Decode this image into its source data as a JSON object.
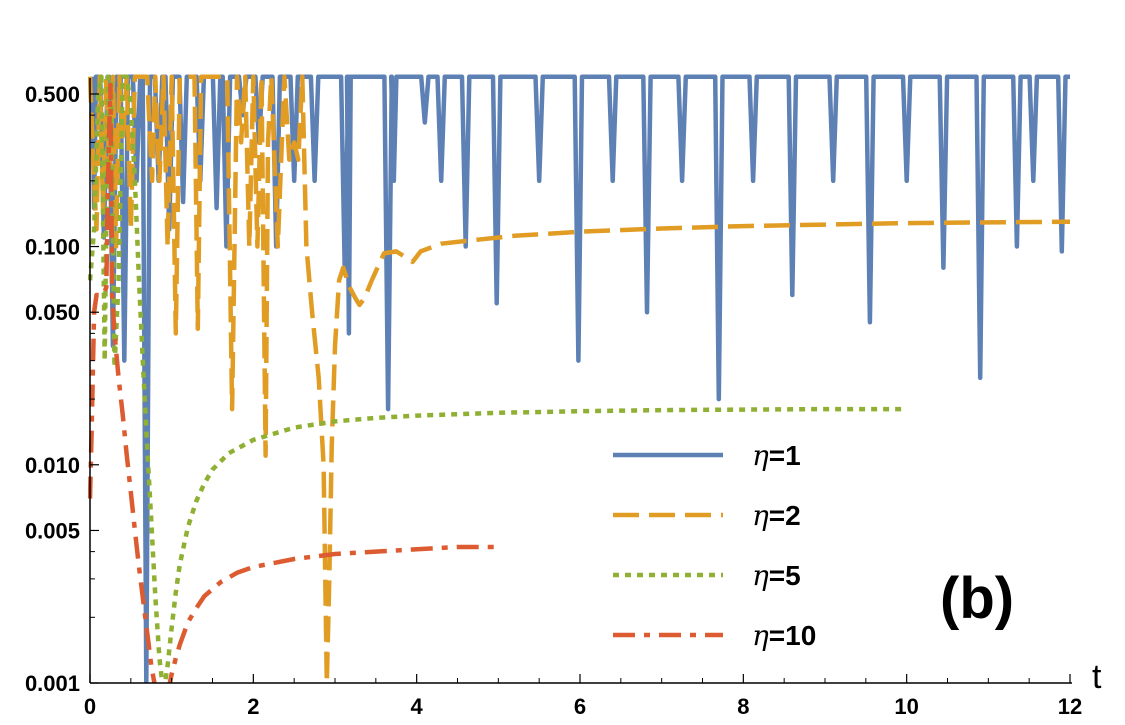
{
  "chart_data": {
    "type": "line",
    "title": "",
    "xlabel": "t",
    "ylabel": "",
    "xlim": [
      0,
      12
    ],
    "ylim": [
      0.001,
      0.6
    ],
    "yscale": "log",
    "grid": false,
    "legend_position": "lower-right",
    "panel_label": "(b)",
    "x_ticks": [
      {
        "value": 0,
        "label": "0"
      },
      {
        "value": 2,
        "label": "2"
      },
      {
        "value": 4,
        "label": "4"
      },
      {
        "value": 6,
        "label": "6"
      },
      {
        "value": 8,
        "label": "8"
      },
      {
        "value": 10,
        "label": "10"
      },
      {
        "value": 12,
        "label": "12"
      }
    ],
    "y_ticks": [
      {
        "value": 0.5,
        "label": "0.500"
      },
      {
        "value": 0.1,
        "label": "0.100"
      },
      {
        "value": 0.05,
        "label": "0.050"
      },
      {
        "value": 0.01,
        "label": "0.010"
      },
      {
        "value": 0.005,
        "label": "0.005"
      },
      {
        "value": 0.001,
        "label": "0.001"
      }
    ],
    "series": [
      {
        "name": "η=1",
        "color": "#5e81b5",
        "dash": "solid",
        "base": 0.6,
        "dips": [
          [
            0.05,
            0.15
          ],
          [
            0.17,
            0.11
          ],
          [
            0.28,
            0.035
          ],
          [
            0.42,
            0.03
          ],
          [
            0.57,
            0.2
          ],
          [
            0.69,
            0.001
          ],
          [
            0.84,
            0.2
          ],
          [
            0.97,
            0.12
          ],
          [
            1.14,
            0.16
          ],
          [
            1.35,
            0.2
          ],
          [
            1.55,
            0.15
          ],
          [
            1.67,
            0.1
          ],
          [
            1.87,
            0.4
          ],
          [
            2.07,
            0.3
          ],
          [
            2.28,
            0.1
          ],
          [
            2.5,
            0.2
          ],
          [
            2.75,
            0.2
          ],
          [
            3.12,
            0.075
          ],
          [
            3.17,
            0.04
          ],
          [
            3.65,
            0.018
          ],
          [
            3.72,
            0.2
          ],
          [
            4.1,
            0.37
          ],
          [
            4.3,
            0.2
          ],
          [
            4.6,
            0.1
          ],
          [
            4.98,
            0.055
          ],
          [
            5.5,
            0.2
          ],
          [
            5.98,
            0.03
          ],
          [
            6.4,
            0.2
          ],
          [
            6.82,
            0.05
          ],
          [
            7.25,
            0.2
          ],
          [
            7.7,
            0.02
          ],
          [
            8.12,
            0.2
          ],
          [
            8.6,
            0.06
          ],
          [
            9.1,
            0.2
          ],
          [
            9.55,
            0.045
          ],
          [
            10.0,
            0.2
          ],
          [
            10.45,
            0.08
          ],
          [
            10.9,
            0.025
          ],
          [
            11.35,
            0.1
          ],
          [
            11.55,
            0.2
          ],
          [
            11.9,
            0.095
          ]
        ]
      },
      {
        "name": "η=2",
        "color": "#e19c24",
        "dash": "dashed",
        "x": [
          0.0,
          0.05,
          0.08,
          0.12,
          0.16,
          0.2,
          0.24,
          0.28,
          0.32,
          0.36,
          0.4,
          0.45,
          0.5,
          0.55,
          0.62,
          0.7,
          0.76,
          0.8,
          0.85,
          0.9,
          0.95,
          1.0,
          1.05,
          1.1,
          1.15,
          1.22,
          1.28,
          1.32,
          1.36,
          1.42,
          1.5,
          1.6,
          1.68,
          1.74,
          1.8,
          1.85,
          1.9,
          1.95,
          2.0,
          2.05,
          2.1,
          2.15,
          2.18,
          2.22,
          2.3,
          2.38,
          2.44,
          2.5,
          2.55,
          2.6,
          2.65,
          2.72,
          2.8,
          2.86,
          2.9,
          2.93,
          2.96,
          3.0,
          3.05,
          3.1,
          3.18,
          3.25,
          3.3,
          3.36,
          3.45,
          3.6,
          3.75,
          3.85,
          3.95,
          4.05,
          4.3,
          4.7,
          5.2,
          6.0,
          7.0,
          8.0,
          9.0,
          10.0,
          11.0,
          12.0
        ],
        "y": [
          0.6,
          0.2,
          0.12,
          0.6,
          0.15,
          0.6,
          0.2,
          0.6,
          0.1,
          0.6,
          0.3,
          0.6,
          0.12,
          0.6,
          0.6,
          0.6,
          0.2,
          0.6,
          0.2,
          0.6,
          0.1,
          0.6,
          0.04,
          0.6,
          0.6,
          0.6,
          0.6,
          0.042,
          0.6,
          0.6,
          0.6,
          0.6,
          0.6,
          0.018,
          0.6,
          0.3,
          0.6,
          0.1,
          0.6,
          0.1,
          0.6,
          0.011,
          0.3,
          0.6,
          0.1,
          0.6,
          0.25,
          0.3,
          0.25,
          0.6,
          0.1,
          0.05,
          0.025,
          0.01,
          0.001,
          0.003,
          0.012,
          0.035,
          0.07,
          0.08,
          0.065,
          0.058,
          0.054,
          0.058,
          0.07,
          0.093,
          0.095,
          0.09,
          0.085,
          0.095,
          0.103,
          0.107,
          0.112,
          0.117,
          0.121,
          0.124,
          0.126,
          0.128,
          0.129,
          0.13
        ]
      },
      {
        "name": "η=5",
        "color": "#8fb032",
        "dash": "dotted",
        "x": [
          0.0,
          0.05,
          0.1,
          0.14,
          0.18,
          0.22,
          0.26,
          0.3,
          0.35,
          0.4,
          0.45,
          0.5,
          0.55,
          0.6,
          0.65,
          0.7,
          0.75,
          0.8,
          0.85,
          0.9,
          0.95,
          1.0,
          1.05,
          1.1,
          1.2,
          1.3,
          1.4,
          1.5,
          1.7,
          2.0,
          2.5,
          3.0,
          3.5,
          4.0,
          5.0,
          6.0,
          7.0,
          8.0,
          9.0,
          10.0
        ],
        "y": [
          0.07,
          0.12,
          0.5,
          0.6,
          0.03,
          0.6,
          0.6,
          0.028,
          0.07,
          0.6,
          0.6,
          0.45,
          0.2,
          0.07,
          0.028,
          0.012,
          0.0055,
          0.0025,
          0.0013,
          0.0009,
          0.0012,
          0.0018,
          0.0026,
          0.0035,
          0.0052,
          0.0068,
          0.0082,
          0.0095,
          0.0113,
          0.013,
          0.0148,
          0.0158,
          0.0164,
          0.0168,
          0.0173,
          0.0176,
          0.0178,
          0.0179,
          0.018,
          0.018
        ]
      },
      {
        "name": "η=10",
        "color": "#dd5b31",
        "dash": "dashdot",
        "x": [
          0.0,
          0.02,
          0.05,
          0.08,
          0.12,
          0.16,
          0.2,
          0.22,
          0.25,
          0.27,
          0.3,
          0.35,
          0.4,
          0.45,
          0.5,
          0.55,
          0.6,
          0.65,
          0.7,
          0.75,
          0.8,
          0.85,
          0.9,
          0.95,
          1.0,
          1.05,
          1.1,
          1.2,
          1.3,
          1.4,
          1.6,
          1.8,
          2.0,
          2.5,
          3.0,
          3.5,
          4.0,
          4.5,
          5.0
        ],
        "y": [
          0.007,
          0.014,
          0.05,
          0.06,
          0.06,
          0.06,
          0.065,
          0.2,
          0.55,
          0.06,
          0.04,
          0.025,
          0.017,
          0.011,
          0.0075,
          0.005,
          0.0034,
          0.0024,
          0.0017,
          0.0012,
          0.00095,
          0.0008,
          0.0008,
          0.0009,
          0.0011,
          0.0013,
          0.0015,
          0.0019,
          0.0022,
          0.0025,
          0.0029,
          0.0032,
          0.0034,
          0.0037,
          0.0039,
          0.004,
          0.0041,
          0.0042,
          0.0042
        ]
      }
    ]
  }
}
